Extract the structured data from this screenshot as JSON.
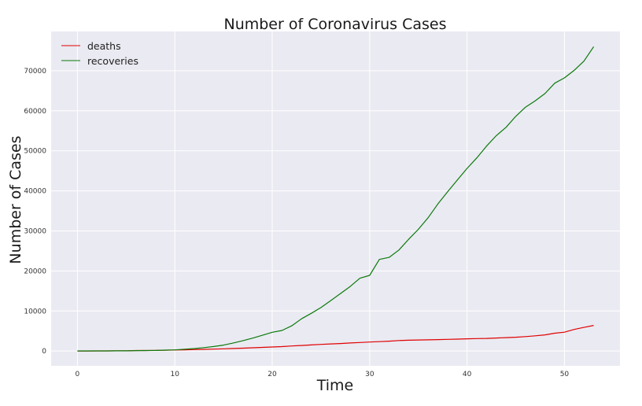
{
  "chart_data": {
    "type": "line",
    "title": "Number of Coronavirus Cases",
    "xlabel": "Time",
    "ylabel": "Number of Cases",
    "xlim": [
      -2.7,
      55.7
    ],
    "ylim": [
      -3700,
      79800
    ],
    "xticks": [
      0,
      10,
      20,
      30,
      40,
      50
    ],
    "yticks": [
      0,
      10000,
      20000,
      30000,
      40000,
      50000,
      60000,
      70000
    ],
    "grid": true,
    "legend_position": "top-left",
    "background": "#eaeaf2",
    "series": [
      {
        "name": "deaths",
        "color": "#e00000",
        "x": [
          0,
          1,
          2,
          3,
          4,
          5,
          6,
          7,
          8,
          9,
          10,
          11,
          12,
          13,
          14,
          15,
          16,
          17,
          18,
          19,
          20,
          21,
          22,
          23,
          24,
          25,
          26,
          27,
          28,
          29,
          30,
          31,
          32,
          33,
          34,
          35,
          36,
          37,
          38,
          39,
          40,
          41,
          42,
          43,
          44,
          45,
          46,
          47,
          48,
          49,
          50,
          51,
          52,
          53
        ],
        "y": [
          17,
          18,
          26,
          42,
          56,
          82,
          131,
          133,
          171,
          213,
          259,
          304,
          362,
          426,
          492,
          565,
          638,
          724,
          813,
          910,
          1018,
          1115,
          1261,
          1383,
          1526,
          1669,
          1775,
          1873,
          2009,
          2126,
          2247,
          2360,
          2460,
          2618,
          2699,
          2763,
          2800,
          2858,
          2923,
          2977,
          3050,
          3110,
          3160,
          3250,
          3350,
          3450,
          3600,
          3800,
          4050,
          4450,
          4700,
          5400,
          5900,
          6400
        ]
      },
      {
        "name": "recoveries",
        "color": "#0a7a0a",
        "x": [
          0,
          1,
          2,
          3,
          4,
          5,
          6,
          7,
          8,
          9,
          10,
          11,
          12,
          13,
          14,
          15,
          16,
          17,
          18,
          19,
          20,
          21,
          22,
          23,
          24,
          25,
          26,
          27,
          28,
          29,
          30,
          31,
          32,
          33,
          34,
          35,
          36,
          37,
          38,
          39,
          40,
          41,
          42,
          43,
          44,
          45,
          46,
          47,
          48,
          49,
          50,
          51,
          52,
          53
        ],
        "y": [
          28,
          30,
          36,
          39,
          52,
          61,
          107,
          126,
          143,
          222,
          284,
          472,
          623,
          852,
          1124,
          1487,
          2011,
          2616,
          3244,
          3946,
          4683,
          5150,
          6295,
          8058,
          9395,
          10865,
          12583,
          14352,
          16121,
          18177,
          18890,
          22886,
          23394,
          25227,
          27905,
          30384,
          33277,
          36711,
          39782,
          42716,
          45602,
          48228,
          51170,
          53796,
          55865,
          58600,
          60900,
          62500,
          64300,
          66900,
          68200,
          70100,
          72400,
          76000
        ]
      }
    ]
  }
}
